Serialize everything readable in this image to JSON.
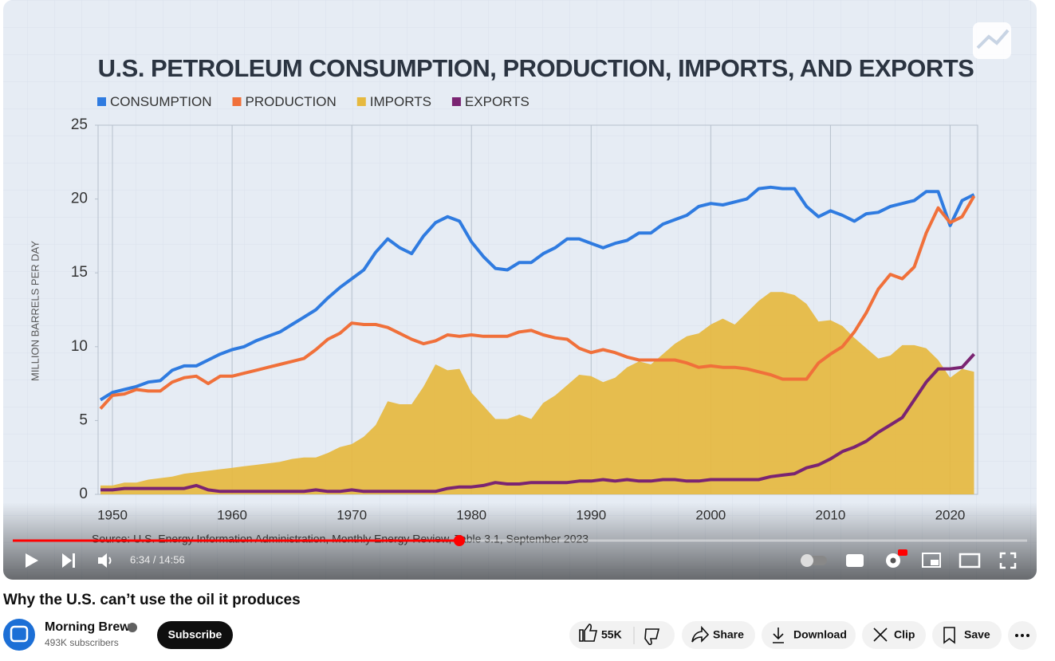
{
  "chart_data": {
    "type": "line",
    "title": "U.S. PETROLEUM CONSUMPTION, PRODUCTION, IMPORTS, AND EXPORTS",
    "y_label": "MILLION BARRELS PER DAY",
    "source": "Source: U.S. Energy Information Administration, Monthly Energy Review, Table 3.1, September 2023",
    "x": [
      1949,
      1950,
      1951,
      1952,
      1953,
      1954,
      1955,
      1956,
      1957,
      1958,
      1959,
      1960,
      1961,
      1962,
      1963,
      1964,
      1965,
      1966,
      1967,
      1968,
      1969,
      1970,
      1971,
      1972,
      1973,
      1974,
      1975,
      1976,
      1977,
      1978,
      1979,
      1980,
      1981,
      1982,
      1983,
      1984,
      1985,
      1986,
      1987,
      1988,
      1989,
      1990,
      1991,
      1992,
      1993,
      1994,
      1995,
      1996,
      1997,
      1998,
      1999,
      2000,
      2001,
      2002,
      2003,
      2004,
      2005,
      2006,
      2007,
      2008,
      2009,
      2010,
      2011,
      2012,
      2013,
      2014,
      2015,
      2016,
      2017,
      2018,
      2019,
      2020,
      2021,
      2022
    ],
    "series": [
      {
        "name": "CONSUMPTION",
        "color": "#2f7be0",
        "fill": false,
        "values": [
          6.4,
          6.9,
          7.1,
          7.3,
          7.6,
          7.7,
          8.4,
          8.7,
          8.7,
          9.1,
          9.5,
          9.8,
          10.0,
          10.4,
          10.7,
          11.0,
          11.5,
          12.0,
          12.5,
          13.3,
          14.0,
          14.6,
          15.2,
          16.4,
          17.3,
          16.7,
          16.3,
          17.5,
          18.4,
          18.8,
          18.5,
          17.1,
          16.1,
          15.3,
          15.2,
          15.7,
          15.7,
          16.3,
          16.7,
          17.3,
          17.3,
          17.0,
          16.7,
          17.0,
          17.2,
          17.7,
          17.7,
          18.3,
          18.6,
          18.9,
          19.5,
          19.7,
          19.6,
          19.8,
          20.0,
          20.7,
          20.8,
          20.7,
          20.7,
          19.5,
          18.8,
          19.2,
          18.9,
          18.5,
          19.0,
          19.1,
          19.5,
          19.7,
          19.9,
          20.5,
          20.5,
          18.2,
          19.9,
          20.3
        ]
      },
      {
        "name": "PRODUCTION",
        "color": "#f0703a",
        "fill": false,
        "values": [
          5.8,
          6.7,
          6.8,
          7.1,
          7.0,
          7.0,
          7.6,
          7.9,
          8.0,
          7.5,
          8.0,
          8.0,
          8.2,
          8.4,
          8.6,
          8.8,
          9.0,
          9.2,
          9.8,
          10.5,
          10.9,
          11.6,
          11.5,
          11.5,
          11.3,
          10.9,
          10.5,
          10.2,
          10.4,
          10.8,
          10.7,
          10.8,
          10.7,
          10.7,
          10.7,
          11.0,
          11.1,
          10.8,
          10.6,
          10.5,
          9.9,
          9.6,
          9.8,
          9.6,
          9.3,
          9.1,
          9.1,
          9.1,
          9.1,
          8.9,
          8.6,
          8.7,
          8.6,
          8.6,
          8.5,
          8.3,
          8.1,
          7.8,
          7.8,
          7.8,
          8.9,
          9.5,
          10.0,
          11.0,
          12.3,
          13.9,
          14.9,
          14.6,
          15.4,
          17.7,
          19.4,
          18.4,
          18.8,
          20.2
        ]
      },
      {
        "name": "IMPORTS",
        "color": "#e6b93f",
        "fill": true,
        "values": [
          0.6,
          0.6,
          0.8,
          0.8,
          1.0,
          1.1,
          1.2,
          1.4,
          1.5,
          1.6,
          1.7,
          1.8,
          1.9,
          2.0,
          2.1,
          2.2,
          2.4,
          2.5,
          2.5,
          2.8,
          3.2,
          3.4,
          3.9,
          4.7,
          6.3,
          6.1,
          6.1,
          7.3,
          8.8,
          8.4,
          8.5,
          6.9,
          6.0,
          5.1,
          5.1,
          5.4,
          5.1,
          6.2,
          6.7,
          7.4,
          8.1,
          8.0,
          7.6,
          7.9,
          8.6,
          9.0,
          8.8,
          9.5,
          10.2,
          10.7,
          10.9,
          11.5,
          11.9,
          11.5,
          12.3,
          13.1,
          13.7,
          13.7,
          13.5,
          12.9,
          11.7,
          11.8,
          11.4,
          10.6,
          9.9,
          9.2,
          9.4,
          10.1,
          10.1,
          9.9,
          9.1,
          7.9,
          8.5,
          8.3
        ]
      },
      {
        "name": "EXPORTS",
        "color": "#7a2472",
        "fill": false,
        "values": [
          0.3,
          0.3,
          0.4,
          0.4,
          0.4,
          0.4,
          0.4,
          0.4,
          0.6,
          0.3,
          0.2,
          0.2,
          0.2,
          0.2,
          0.2,
          0.2,
          0.2,
          0.2,
          0.3,
          0.2,
          0.2,
          0.3,
          0.2,
          0.2,
          0.2,
          0.2,
          0.2,
          0.2,
          0.2,
          0.4,
          0.5,
          0.5,
          0.6,
          0.8,
          0.7,
          0.7,
          0.8,
          0.8,
          0.8,
          0.8,
          0.9,
          0.9,
          1.0,
          0.9,
          1.0,
          0.9,
          0.9,
          1.0,
          1.0,
          0.9,
          0.9,
          1.0,
          1.0,
          1.0,
          1.0,
          1.0,
          1.2,
          1.3,
          1.4,
          1.8,
          2.0,
          2.4,
          2.9,
          3.2,
          3.6,
          4.2,
          4.7,
          5.2,
          6.4,
          7.6,
          8.5,
          8.5,
          8.6,
          9.5
        ]
      }
    ],
    "xlim": [
      1948.8,
      2022.3
    ],
    "xticks": [
      1950,
      1960,
      1970,
      1980,
      1990,
      2000,
      2010,
      2020
    ],
    "ylim": [
      0,
      25
    ],
    "yticks": [
      0,
      5,
      10,
      15,
      20,
      25
    ],
    "grid": true
  },
  "player": {
    "time": "6:34 / 14:56"
  },
  "video_title": "Why the U.S. can’t use the oil it produces",
  "channel": {
    "name": "Morning Brew",
    "subscribers": "493K subscribers"
  },
  "actions": {
    "subscribe": "Subscribe",
    "likes": "55K",
    "share": "Share",
    "download": "Download",
    "clip": "Clip",
    "save": "Save"
  }
}
